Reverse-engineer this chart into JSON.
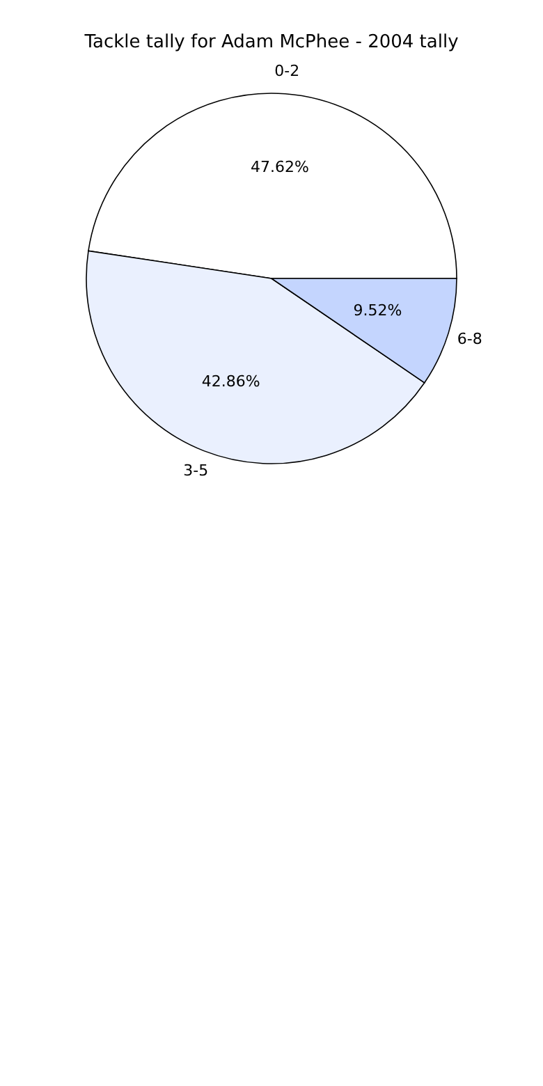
{
  "chart_data": {
    "type": "pie",
    "title": "Tackle tally for Adam McPhee - 2004 tally",
    "categories": [
      "0-2",
      "3-5",
      "6-8"
    ],
    "values": [
      47.62,
      42.86,
      9.52
    ],
    "value_labels": [
      "47.62%",
      "42.86%",
      "9.52%"
    ],
    "colors": [
      "#ffffff",
      "#eaf0fe",
      "#c4d5fe"
    ]
  }
}
